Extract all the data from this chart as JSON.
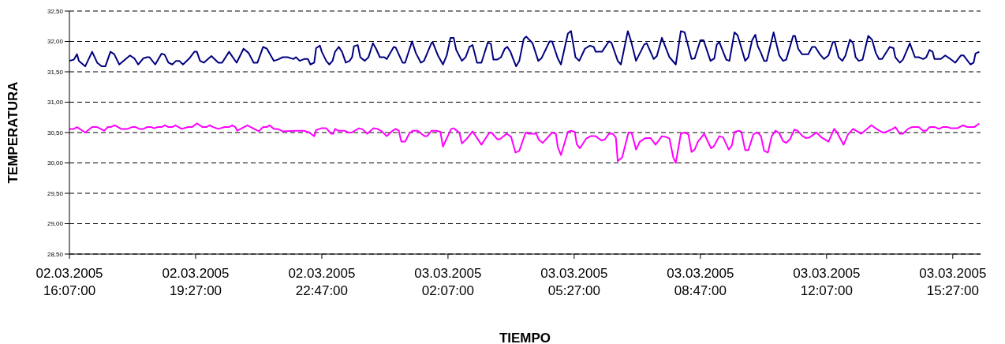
{
  "chart_data": {
    "type": "line",
    "xlabel": "TIEMPO",
    "ylabel": "TEMPERATURA",
    "xlim": [
      "2005-03-02T16:07",
      "2005-03-03T16:11"
    ],
    "xticks": [
      {
        "value": "2005-03-02T16:07",
        "label": "02.03.2005\n16:07:00"
      },
      {
        "value": "2005-03-02T19:27",
        "label": "02.03.2005\n19:27:00"
      },
      {
        "value": "2005-03-02T22:47",
        "label": "02.03.2005\n22:47:00"
      },
      {
        "value": "2005-03-03T02:07",
        "label": "03.03.2005\n02:07:00"
      },
      {
        "value": "2005-03-03T05:27",
        "label": "03.03.2005\n05:27:00"
      },
      {
        "value": "2005-03-03T08:47",
        "label": "03.03.2005\n08:47:00"
      },
      {
        "value": "2005-03-03T12:07",
        "label": "03.03.2005\n12:07:00"
      },
      {
        "value": "2005-03-03T15:27",
        "label": "03.03.2005\n15:27:00"
      }
    ],
    "ylim": [
      28.5,
      32.5
    ],
    "yticks": [
      {
        "value": 28.5,
        "label": "28,50"
      },
      {
        "value": 29,
        "label": "29,00"
      },
      {
        "value": 29.5,
        "label": "29,50"
      },
      {
        "value": 30,
        "label": "30,00"
      },
      {
        "value": 30.5,
        "label": "30,50"
      },
      {
        "value": 31,
        "label": "31,00"
      },
      {
        "value": 31.5,
        "label": "31,50"
      },
      {
        "value": 32,
        "label": "32,00"
      },
      {
        "value": 32.5,
        "label": "32,50"
      }
    ],
    "grid": "y",
    "line_style": "solid",
    "series": [
      {
        "color": "#000080",
        "x": [
          "2005-03-02T16:07",
          "2005-03-02T16:14",
          "2005-03-02T16:19",
          "2005-03-02T16:22",
          "2005-03-02T16:32",
          "2005-03-02T16:43",
          "2005-03-02T16:51",
          "2005-03-02T16:58",
          "2005-03-02T17:04",
          "2005-03-02T17:12",
          "2005-03-02T17:18",
          "2005-03-02T17:26",
          "2005-03-02T17:43",
          "2005-03-02T17:50",
          "2005-03-02T17:56",
          "2005-03-02T18:04",
          "2005-03-02T18:10",
          "2005-03-02T18:14",
          "2005-03-02T18:23",
          "2005-03-02T18:33",
          "2005-03-02T18:38",
          "2005-03-02T18:44",
          "2005-03-02T18:50",
          "2005-03-02T18:56",
          "2005-03-02T19:01",
          "2005-03-02T19:07",
          "2005-03-02T19:17",
          "2005-03-02T19:25",
          "2005-03-02T19:29",
          "2005-03-02T19:34",
          "2005-03-02T19:40",
          "2005-03-02T19:52",
          "2005-03-02T20:03",
          "2005-03-02T20:09",
          "2005-03-02T20:20",
          "2005-03-02T20:32",
          "2005-03-02T20:43",
          "2005-03-02T20:51",
          "2005-03-02T20:59",
          "2005-03-02T21:05",
          "2005-03-02T21:14",
          "2005-03-02T21:20",
          "2005-03-02T21:31",
          "2005-03-02T21:37",
          "2005-03-02T21:45",
          "2005-03-02T21:53",
          "2005-03-02T22:02",
          "2005-03-02T22:06",
          "2005-03-02T22:12",
          "2005-03-02T22:19",
          "2005-03-02T22:25",
          "2005-03-02T22:29",
          "2005-03-02T22:35",
          "2005-03-02T22:38",
          "2005-03-02T22:44",
          "2005-03-02T22:47",
          "2005-03-02T22:54",
          "2005-03-02T22:59",
          "2005-03-02T23:04",
          "2005-03-02T23:08",
          "2005-03-02T23:14",
          "2005-03-02T23:19",
          "2005-03-02T23:25",
          "2005-03-02T23:31",
          "2005-03-02T23:35",
          "2005-03-02T23:38",
          "2005-03-02T23:44",
          "2005-03-02T23:48",
          "2005-03-02T23:55",
          "2005-03-03T00:01",
          "2005-03-03T00:08",
          "2005-03-03T00:13",
          "2005-03-03T00:19",
          "2005-03-03T00:26",
          "2005-03-03T00:30",
          "2005-03-03T00:41",
          "2005-03-03T00:44",
          "2005-03-03T00:55",
          "2005-03-03T00:59",
          "2005-03-03T01:10",
          "2005-03-03T01:16",
          "2005-03-03T01:24",
          "2005-03-03T01:29",
          "2005-03-03T01:41",
          "2005-03-03T01:43",
          "2005-03-03T01:51",
          "2005-03-03T01:59",
          "2005-03-03T02:05",
          "2005-03-03T02:11",
          "2005-03-03T02:16",
          "2005-03-03T02:20",
          "2005-03-03T02:29",
          "2005-03-03T02:35",
          "2005-03-03T02:41",
          "2005-03-03T02:46",
          "2005-03-03T02:53",
          "2005-03-03T03:00",
          "2005-03-03T03:10",
          "2005-03-03T03:15",
          "2005-03-03T03:19",
          "2005-03-03T03:25",
          "2005-03-03T03:31",
          "2005-03-03T03:37",
          "2005-03-03T03:41",
          "2005-03-03T03:46",
          "2005-03-03T03:50",
          "2005-03-03T03:55",
          "2005-03-03T04:00",
          "2005-03-03T04:07",
          "2005-03-03T04:11",
          "2005-03-03T04:21",
          "2005-03-03T04:30",
          "2005-03-03T04:35",
          "2005-03-03T04:48",
          "2005-03-03T04:52",
          "2005-03-03T05:01",
          "2005-03-03T05:06",
          "2005-03-03T05:17",
          "2005-03-03T05:22",
          "2005-03-03T05:29",
          "2005-03-03T05:35",
          "2005-03-03T05:44",
          "2005-03-03T05:52",
          "2005-03-03T05:58",
          "2005-03-03T06:01",
          "2005-03-03T06:11",
          "2005-03-03T06:22",
          "2005-03-03T06:26",
          "2005-03-03T06:36",
          "2005-03-03T06:41",
          "2005-03-03T06:52",
          "2005-03-03T06:57",
          "2005-03-03T07:05",
          "2005-03-03T07:18",
          "2005-03-03T07:22",
          "2005-03-03T07:33",
          "2005-03-03T07:38",
          "2005-03-03T07:46",
          "2005-03-03T07:58",
          "2005-03-03T08:08",
          "2005-03-03T08:16",
          "2005-03-03T08:22",
          "2005-03-03T08:33",
          "2005-03-03T08:38",
          "2005-03-03T08:47",
          "2005-03-03T08:52",
          "2005-03-03T09:03",
          "2005-03-03T09:09",
          "2005-03-03T09:13",
          "2005-03-03T09:17",
          "2005-03-03T09:28",
          "2005-03-03T09:33",
          "2005-03-03T09:41",
          "2005-03-03T09:46",
          "2005-03-03T09:58",
          "2005-03-03T10:03",
          "2005-03-03T10:09",
          "2005-03-03T10:14",
          "2005-03-03T10:18",
          "2005-03-03T10:23",
          "2005-03-03T10:28",
          "2005-03-03T10:32",
          "2005-03-03T10:43",
          "2005-03-03T10:52",
          "2005-03-03T10:58",
          "2005-03-03T11:03",
          "2005-03-03T11:14",
          "2005-03-03T11:17",
          "2005-03-03T11:22",
          "2005-03-03T11:28",
          "2005-03-03T11:38",
          "2005-03-03T11:44",
          "2005-03-03T11:49",
          "2005-03-03T11:57",
          "2005-03-03T12:03",
          "2005-03-03T12:10",
          "2005-03-03T12:17",
          "2005-03-03T12:20",
          "2005-03-03T12:26",
          "2005-03-03T12:32",
          "2005-03-03T12:37",
          "2005-03-03T12:44",
          "2005-03-03T12:49",
          "2005-03-03T12:53",
          "2005-03-03T12:58",
          "2005-03-03T13:04",
          "2005-03-03T13:13",
          "2005-03-03T13:19",
          "2005-03-03T13:25",
          "2005-03-03T13:30",
          "2005-03-03T13:35",
          "2005-03-03T13:47",
          "2005-03-03T13:53",
          "2005-03-03T13:56",
          "2005-03-03T14:03",
          "2005-03-03T14:08",
          "2005-03-03T14:19",
          "2005-03-03T14:27",
          "2005-03-03T14:33",
          "2005-03-03T14:40",
          "2005-03-03T14:45",
          "2005-03-03T14:50",
          "2005-03-03T14:55",
          "2005-03-03T14:58",
          "2005-03-03T15:08",
          "2005-03-03T15:15",
          "2005-03-03T15:22",
          "2005-03-03T15:31",
          "2005-03-03T15:40",
          "2005-03-03T15:44",
          "2005-03-03T15:55",
          "2005-03-03T16:00",
          "2005-03-03T16:03",
          "2005-03-03T16:09"
        ],
        "values": [
          31.68,
          31.7,
          31.79,
          31.68,
          31.59,
          31.83,
          31.65,
          31.59,
          31.59,
          31.83,
          31.79,
          31.62,
          31.77,
          31.72,
          31.62,
          31.72,
          31.74,
          31.74,
          31.62,
          31.8,
          31.78,
          31.65,
          31.62,
          31.68,
          31.68,
          31.62,
          31.72,
          31.83,
          31.83,
          31.68,
          31.65,
          31.76,
          31.65,
          31.65,
          31.83,
          31.65,
          31.88,
          31.81,
          31.65,
          31.65,
          31.91,
          31.88,
          31.68,
          31.7,
          31.74,
          31.74,
          31.71,
          31.74,
          31.68,
          31.71,
          31.71,
          31.62,
          31.65,
          31.89,
          31.93,
          31.83,
          31.68,
          31.62,
          31.68,
          31.83,
          31.91,
          31.83,
          31.65,
          31.68,
          31.74,
          31.92,
          31.94,
          31.74,
          31.68,
          31.74,
          31.97,
          31.88,
          31.74,
          31.74,
          31.71,
          31.91,
          31.9,
          31.65,
          31.65,
          32.0,
          31.81,
          31.65,
          31.68,
          31.98,
          31.98,
          31.77,
          31.62,
          31.77,
          32.06,
          32.06,
          31.86,
          31.68,
          31.74,
          31.91,
          31.94,
          31.65,
          31.65,
          31.98,
          31.96,
          31.7,
          31.7,
          31.74,
          31.88,
          31.91,
          31.83,
          31.72,
          31.59,
          31.68,
          32.04,
          32.08,
          31.97,
          31.68,
          31.72,
          32.0,
          32.0,
          31.72,
          31.62,
          32.13,
          32.17,
          31.74,
          31.68,
          31.88,
          31.93,
          31.91,
          31.83,
          31.83,
          32.0,
          31.98,
          31.68,
          31.62,
          32.17,
          32.01,
          31.68,
          31.95,
          31.97,
          31.71,
          31.76,
          32.06,
          31.74,
          31.62,
          32.17,
          32.15,
          31.71,
          31.72,
          32.02,
          32.02,
          31.68,
          31.72,
          31.95,
          31.99,
          31.7,
          31.68,
          32.15,
          32.1,
          31.68,
          31.74,
          32.02,
          32.11,
          31.92,
          31.81,
          31.68,
          31.68,
          32.15,
          31.77,
          31.68,
          31.7,
          32.09,
          32.09,
          31.88,
          31.79,
          31.79,
          31.91,
          31.91,
          31.78,
          31.71,
          31.77,
          31.99,
          31.99,
          31.74,
          31.68,
          31.77,
          32.03,
          31.97,
          31.74,
          31.68,
          31.7,
          32.09,
          32.03,
          31.81,
          31.71,
          31.71,
          31.91,
          31.89,
          31.74,
          31.65,
          31.7,
          31.97,
          31.74,
          31.74,
          31.71,
          31.74,
          31.86,
          31.83,
          31.71,
          31.71,
          31.77,
          31.72,
          31.65,
          31.77,
          31.77,
          31.62,
          31.65,
          31.8,
          31.83
        ]
      },
      {
        "color": "#ff00ff",
        "x": [
          "2005-03-02T16:07",
          "2005-03-02T16:14",
          "2005-03-02T16:19",
          "2005-03-02T16:32",
          "2005-03-02T16:43",
          "2005-03-02T16:51",
          "2005-03-02T17:02",
          "2005-03-02T17:08",
          "2005-03-02T17:12",
          "2005-03-02T17:19",
          "2005-03-02T17:29",
          "2005-03-02T17:39",
          "2005-03-02T17:46",
          "2005-03-02T17:52",
          "2005-03-02T17:58",
          "2005-03-02T18:04",
          "2005-03-02T18:10",
          "2005-03-02T18:17",
          "2005-03-02T18:21",
          "2005-03-02T18:27",
          "2005-03-02T18:33",
          "2005-03-02T18:38",
          "2005-03-02T18:44",
          "2005-03-02T18:50",
          "2005-03-02T18:55",
          "2005-03-02T19:05",
          "2005-03-02T19:15",
          "2005-03-02T19:21",
          "2005-03-02T19:29",
          "2005-03-02T19:38",
          "2005-03-02T19:44",
          "2005-03-02T19:49",
          "2005-03-02T19:55",
          "2005-03-02T20:03",
          "2005-03-02T20:13",
          "2005-03-02T20:20",
          "2005-03-02T20:25",
          "2005-03-02T20:30",
          "2005-03-02T20:33",
          "2005-03-02T20:49",
          "2005-03-02T21:07",
          "2005-03-02T21:14",
          "2005-03-02T21:20",
          "2005-03-02T21:24",
          "2005-03-02T21:31",
          "2005-03-02T21:37",
          "2005-03-02T21:45",
          "2005-03-02T22:06",
          "2005-03-02T22:19",
          "2005-03-02T22:27",
          "2005-03-02T22:35",
          "2005-03-02T22:38",
          "2005-03-02T22:46",
          "2005-03-02T22:54",
          "2005-03-02T23:02",
          "2005-03-02T23:05",
          "2005-03-02T23:08",
          "2005-03-02T23:13",
          "2005-03-02T23:23",
          "2005-03-02T23:29",
          "2005-03-02T23:34",
          "2005-03-02T23:46",
          "2005-03-02T23:52",
          "2005-03-02T23:59",
          "2005-03-03T00:09",
          "2005-03-03T00:15",
          "2005-03-03T00:22",
          "2005-03-03T00:30",
          "2005-03-03T00:38",
          "2005-03-03T00:44",
          "2005-03-03T00:49",
          "2005-03-03T00:53",
          "2005-03-03T00:59",
          "2005-03-03T01:06",
          "2005-03-03T01:11",
          "2005-03-03T01:19",
          "2005-03-03T01:26",
          "2005-03-03T01:30",
          "2005-03-03T01:34",
          "2005-03-03T01:41",
          "2005-03-03T01:49",
          "2005-03-03T01:55",
          "2005-03-03T01:59",
          "2005-03-03T02:12",
          "2005-03-03T02:16",
          "2005-03-03T02:25",
          "2005-03-03T02:29",
          "2005-03-03T02:37",
          "2005-03-03T02:46",
          "2005-03-03T03:00",
          "2005-03-03T03:12",
          "2005-03-03T03:16",
          "2005-03-03T03:25",
          "2005-03-03T03:29",
          "2005-03-03T03:40",
          "2005-03-03T03:47",
          "2005-03-03T03:54",
          "2005-03-03T04:00",
          "2005-03-03T04:10",
          "2005-03-03T04:15",
          "2005-03-03T04:21",
          "2005-03-03T04:27",
          "2005-03-03T04:31",
          "2005-03-03T04:37",
          "2005-03-03T04:52",
          "2005-03-03T04:58",
          "2005-03-03T05:01",
          "2005-03-03T05:06",
          "2005-03-03T05:17",
          "2005-03-03T05:22",
          "2005-03-03T05:28",
          "2005-03-03T05:31",
          "2005-03-03T05:36",
          "2005-03-03T05:46",
          "2005-03-03T05:53",
          "2005-03-03T06:01",
          "2005-03-03T06:10",
          "2005-03-03T06:16",
          "2005-03-03T06:22",
          "2005-03-03T06:28",
          "2005-03-03T06:33",
          "2005-03-03T06:36",
          "2005-03-03T06:43",
          "2005-03-03T06:53",
          "2005-03-03T06:58",
          "2005-03-03T07:05",
          "2005-03-03T07:11",
          "2005-03-03T07:20",
          "2005-03-03T07:28",
          "2005-03-03T07:36",
          "2005-03-03T07:46",
          "2005-03-03T07:52",
          "2005-03-03T07:58",
          "2005-03-03T08:04",
          "2005-03-03T08:08",
          "2005-03-03T08:16",
          "2005-03-03T08:22",
          "2005-03-03T08:28",
          "2005-03-03T08:33",
          "2005-03-03T08:38",
          "2005-03-03T08:43",
          "2005-03-03T08:53",
          "2005-03-03T09:04",
          "2005-03-03T09:08",
          "2005-03-03T09:17",
          "2005-03-03T09:23",
          "2005-03-03T09:32",
          "2005-03-03T09:37",
          "2005-03-03T09:41",
          "2005-03-03T09:48",
          "2005-03-03T09:52",
          "2005-03-03T09:58",
          "2005-03-03T10:03",
          "2005-03-03T10:11",
          "2005-03-03T10:16",
          "2005-03-03T10:20",
          "2005-03-03T10:23",
          "2005-03-03T10:28",
          "2005-03-03T10:34",
          "2005-03-03T10:40",
          "2005-03-03T10:46",
          "2005-03-03T10:52",
          "2005-03-03T10:58",
          "2005-03-03T11:03",
          "2005-03-03T11:09",
          "2005-03-03T11:16",
          "2005-03-03T11:21",
          "2005-03-03T11:29",
          "2005-03-03T11:34",
          "2005-03-03T11:40",
          "2005-03-03T11:51",
          "2005-03-03T11:59",
          "2005-03-03T12:10",
          "2005-03-03T12:19",
          "2005-03-03T12:23",
          "2005-03-03T12:34",
          "2005-03-03T12:41",
          "2005-03-03T12:49",
          "2005-03-03T13:02",
          "2005-03-03T13:18",
          "2005-03-03T13:26",
          "2005-03-03T13:34",
          "2005-03-03T13:39",
          "2005-03-03T13:52",
          "2005-03-03T13:56",
          "2005-03-03T14:03",
          "2005-03-03T14:08",
          "2005-03-03T14:16",
          "2005-03-03T14:22",
          "2005-03-03T14:33",
          "2005-03-03T14:40",
          "2005-03-03T14:45",
          "2005-03-03T14:50",
          "2005-03-03T14:59",
          "2005-03-03T15:05",
          "2005-03-03T15:11",
          "2005-03-03T15:19",
          "2005-03-03T15:24",
          "2005-03-03T15:34",
          "2005-03-03T15:43",
          "2005-03-03T15:50",
          "2005-03-03T16:01",
          "2005-03-03T16:09"
        ],
        "values": [
          30.56,
          30.56,
          30.59,
          30.5,
          30.59,
          30.59,
          30.53,
          30.59,
          30.59,
          30.62,
          30.56,
          30.56,
          30.59,
          30.59,
          30.56,
          30.56,
          30.59,
          30.59,
          30.57,
          30.59,
          30.59,
          30.62,
          30.59,
          30.59,
          30.62,
          30.56,
          30.59,
          30.59,
          30.65,
          30.59,
          30.59,
          30.62,
          30.59,
          30.56,
          30.59,
          30.59,
          30.62,
          30.59,
          30.53,
          30.62,
          30.52,
          30.59,
          30.59,
          30.62,
          30.56,
          30.56,
          30.52,
          30.53,
          30.53,
          30.5,
          30.44,
          30.54,
          30.57,
          30.57,
          30.48,
          30.48,
          30.56,
          30.53,
          30.53,
          30.5,
          30.5,
          30.57,
          30.55,
          30.48,
          30.57,
          30.56,
          30.52,
          30.44,
          30.52,
          30.56,
          30.53,
          30.35,
          30.35,
          30.49,
          30.53,
          30.53,
          30.47,
          30.44,
          30.44,
          30.53,
          30.53,
          30.51,
          30.27,
          30.56,
          30.57,
          30.5,
          30.32,
          30.4,
          30.52,
          30.3,
          30.49,
          30.5,
          30.39,
          30.39,
          30.48,
          30.43,
          30.17,
          30.2,
          30.5,
          30.48,
          30.48,
          30.48,
          30.38,
          30.33,
          30.5,
          30.48,
          30.26,
          30.13,
          30.51,
          30.53,
          30.51,
          30.31,
          30.24,
          30.4,
          30.44,
          30.44,
          30.37,
          30.39,
          30.48,
          30.48,
          30.42,
          30.03,
          30.09,
          30.5,
          30.5,
          30.22,
          30.35,
          30.41,
          30.41,
          30.3,
          30.44,
          30.43,
          30.4,
          30.09,
          30.0,
          30.48,
          30.5,
          30.47,
          30.18,
          30.22,
          30.35,
          30.48,
          30.24,
          30.27,
          30.44,
          30.42,
          30.22,
          30.29,
          30.51,
          30.53,
          30.51,
          30.21,
          30.21,
          30.47,
          30.5,
          30.48,
          30.44,
          30.2,
          30.17,
          30.44,
          30.53,
          30.49,
          30.36,
          30.33,
          30.39,
          30.55,
          30.53,
          30.44,
          30.41,
          30.42,
          30.5,
          30.42,
          30.35,
          30.56,
          30.51,
          30.3,
          30.47,
          30.56,
          30.48,
          30.62,
          30.56,
          30.51,
          30.5,
          30.56,
          30.59,
          30.48,
          30.48,
          30.56,
          30.59,
          30.59,
          30.53,
          30.53,
          30.59,
          30.59,
          30.56,
          30.59,
          30.59,
          30.57,
          30.57,
          30.62,
          30.59,
          30.59,
          30.65
        ]
      }
    ]
  }
}
